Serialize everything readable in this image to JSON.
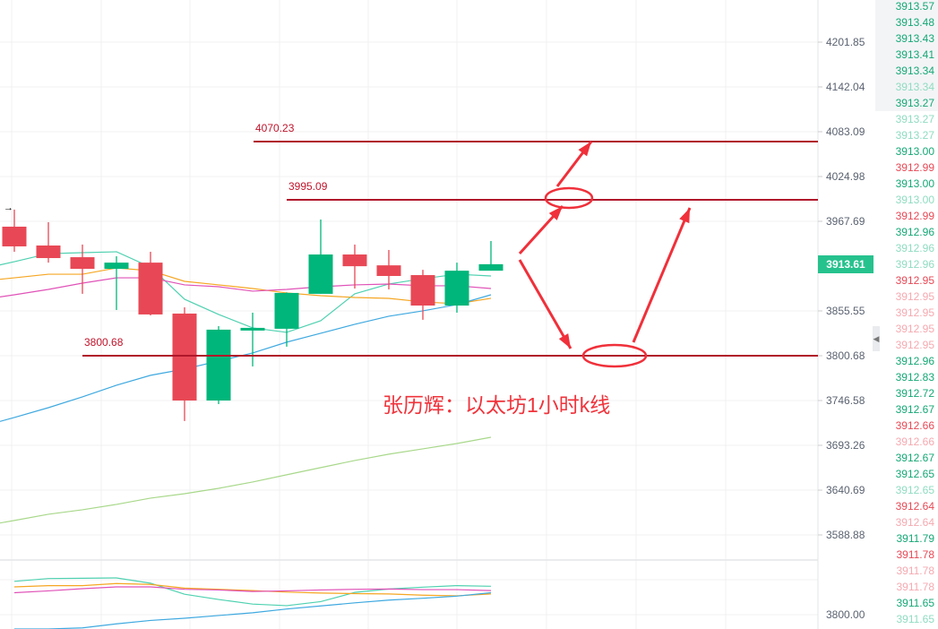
{
  "chart_data": {
    "type": "candlestick",
    "y_scale": "log",
    "grid": true,
    "colors": {
      "up": "#00b67a",
      "down": "#e84855",
      "level_line": "#b0152a",
      "annotation": "#f0303a",
      "current_price_bg": "#26c28e"
    },
    "y_axis_ticks": [
      4201.85,
      4142.04,
      4083.09,
      4024.98,
      3967.69,
      3855.55,
      3800.68,
      3746.58,
      3693.26,
      3640.69,
      3588.88
    ],
    "current_price": "3913.61",
    "candles": [
      {
        "o": 3960.9,
        "h": 3982.6,
        "l": 3929.2,
        "c": 3936.0
      },
      {
        "o": 3937.1,
        "h": 3966.6,
        "l": 3915.6,
        "c": 3921.3
      },
      {
        "o": 3922.4,
        "h": 3938.3,
        "l": 3876.7,
        "c": 3907.8
      },
      {
        "o": 3907.8,
        "h": 3923.6,
        "l": 3856.7,
        "c": 3915.6
      },
      {
        "o": 3915.6,
        "h": 3929.2,
        "l": 3850.0,
        "c": 3851.2
      },
      {
        "o": 3852.3,
        "h": 3860.0,
        "l": 3722.1,
        "c": 3746.6
      },
      {
        "o": 3746.6,
        "h": 3836.9,
        "l": 3742.3,
        "c": 3832.5
      },
      {
        "o": 3831.4,
        "h": 3853.4,
        "l": 3787.7,
        "c": 3834.7
      },
      {
        "o": 3833.6,
        "h": 3878.5,
        "l": 3811.7,
        "c": 3877.8
      },
      {
        "o": 3876.7,
        "h": 3970.0,
        "l": 3876.7,
        "c": 3925.8
      },
      {
        "o": 3925.8,
        "h": 3938.3,
        "l": 3883.3,
        "c": 3911.1
      },
      {
        "o": 3912.2,
        "h": 3931.5,
        "l": 3882.2,
        "c": 3898.9
      },
      {
        "o": 3900.0,
        "h": 3906.6,
        "l": 3844.6,
        "c": 3862.2
      },
      {
        "o": 3862.2,
        "h": 3915.6,
        "l": 3853.4,
        "c": 3905.5
      },
      {
        "o": 3905.5,
        "h": 3942.8,
        "l": 3905.5,
        "c": 3913.61
      }
    ],
    "moving_averages": [
      {
        "color": "#4fd1b0",
        "values": [
          3916.8,
          3926.9,
          3928.1,
          3929.2,
          3910.0,
          3870.0,
          3851.2,
          3834.7,
          3829.2,
          3843.5,
          3876.7,
          3888.9,
          3895.5,
          3901.1,
          3898.9
        ]
      },
      {
        "color": "#f5a623",
        "values": [
          3896.6,
          3901.1,
          3901.1,
          3908.9,
          3905.5,
          3892.2,
          3887.8,
          3883.3,
          3877.8,
          3874.4,
          3872.2,
          3871.1,
          3866.7,
          3864.4,
          3871.1
        ]
      },
      {
        "color": "#e052b8",
        "values": [
          3875.5,
          3882.2,
          3890.0,
          3896.6,
          3896.6,
          3887.8,
          3885.5,
          3880.0,
          3882.2,
          3885.5,
          3887.8,
          3888.9,
          3886.7,
          3886.7,
          3883.3
        ]
      },
      {
        "color": "#3fa9e0",
        "values": [
          3726.3,
          3738.0,
          3750.9,
          3765.0,
          3776.9,
          3784.5,
          3794.2,
          3804.0,
          3817.2,
          3828.1,
          3839.1,
          3849.0,
          3855.6,
          3863.3,
          3875.5
        ]
      },
      {
        "color": "#a8d88a",
        "values": [
          3605.5,
          3612.7,
          3617.9,
          3624.1,
          3631.4,
          3636.5,
          3642.8,
          3650.2,
          3658.6,
          3667.0,
          3675.4,
          3682.8,
          3689.1,
          3695.4,
          3702.8
        ]
      }
    ],
    "levels": [
      {
        "label": "4070.23",
        "value": 4070.23,
        "from_candle": 7
      },
      {
        "label": "3995.09",
        "value": 3995.09,
        "from_candle": 8
      },
      {
        "label": "3800.68",
        "value": 3800.68,
        "from_candle": 2
      }
    ],
    "annotation_text": "张历辉：以太坊1小时k线",
    "lower_panel": {
      "axis_label": "3800.00"
    }
  },
  "ticker": [
    {
      "v": "3913.57",
      "c": "#14a875"
    },
    {
      "v": "3913.48",
      "c": "#14a875"
    },
    {
      "v": "3913.43",
      "c": "#14a875"
    },
    {
      "v": "3913.41",
      "c": "#14a875"
    },
    {
      "v": "3913.34",
      "c": "#14a875"
    },
    {
      "v": "3913.34",
      "c": "#8fdcc1"
    },
    {
      "v": "3913.27",
      "c": "#14a875"
    },
    {
      "v": "3913.27",
      "c": "#8fdcc1"
    },
    {
      "v": "3913.27",
      "c": "#8fdcc1"
    },
    {
      "v": "3913.00",
      "c": "#14a875"
    },
    {
      "v": "3912.99",
      "c": "#e84855"
    },
    {
      "v": "3913.00",
      "c": "#14a875"
    },
    {
      "v": "3913.00",
      "c": "#8fdcc1"
    },
    {
      "v": "3912.99",
      "c": "#e84855"
    },
    {
      "v": "3912.96",
      "c": "#14a875"
    },
    {
      "v": "3912.96",
      "c": "#8fdcc1"
    },
    {
      "v": "3912.96",
      "c": "#8fdcc1"
    },
    {
      "v": "3912.95",
      "c": "#e84855"
    },
    {
      "v": "3912.95",
      "c": "#f5a9b0"
    },
    {
      "v": "3912.95",
      "c": "#f5a9b0"
    },
    {
      "v": "3912.95",
      "c": "#f5a9b0"
    },
    {
      "v": "3912.95",
      "c": "#f5a9b0"
    },
    {
      "v": "3912.96",
      "c": "#14a875"
    },
    {
      "v": "3912.83",
      "c": "#14a875"
    },
    {
      "v": "3912.72",
      "c": "#14a875"
    },
    {
      "v": "3912.67",
      "c": "#14a875"
    },
    {
      "v": "3912.66",
      "c": "#e84855"
    },
    {
      "v": "3912.66",
      "c": "#f5a9b0"
    },
    {
      "v": "3912.67",
      "c": "#14a875"
    },
    {
      "v": "3912.65",
      "c": "#14a875"
    },
    {
      "v": "3912.65",
      "c": "#8fdcc1"
    },
    {
      "v": "3912.64",
      "c": "#e84855"
    },
    {
      "v": "3912.64",
      "c": "#f5a9b0"
    },
    {
      "v": "3911.79",
      "c": "#14a875"
    },
    {
      "v": "3911.78",
      "c": "#e84855"
    },
    {
      "v": "3911.78",
      "c": "#f5a9b0"
    },
    {
      "v": "3911.78",
      "c": "#f5a9b0"
    },
    {
      "v": "3911.65",
      "c": "#14a875"
    },
    {
      "v": "3911.65",
      "c": "#8fdcc1"
    }
  ],
  "marker_icon": "arrow-right-icon"
}
